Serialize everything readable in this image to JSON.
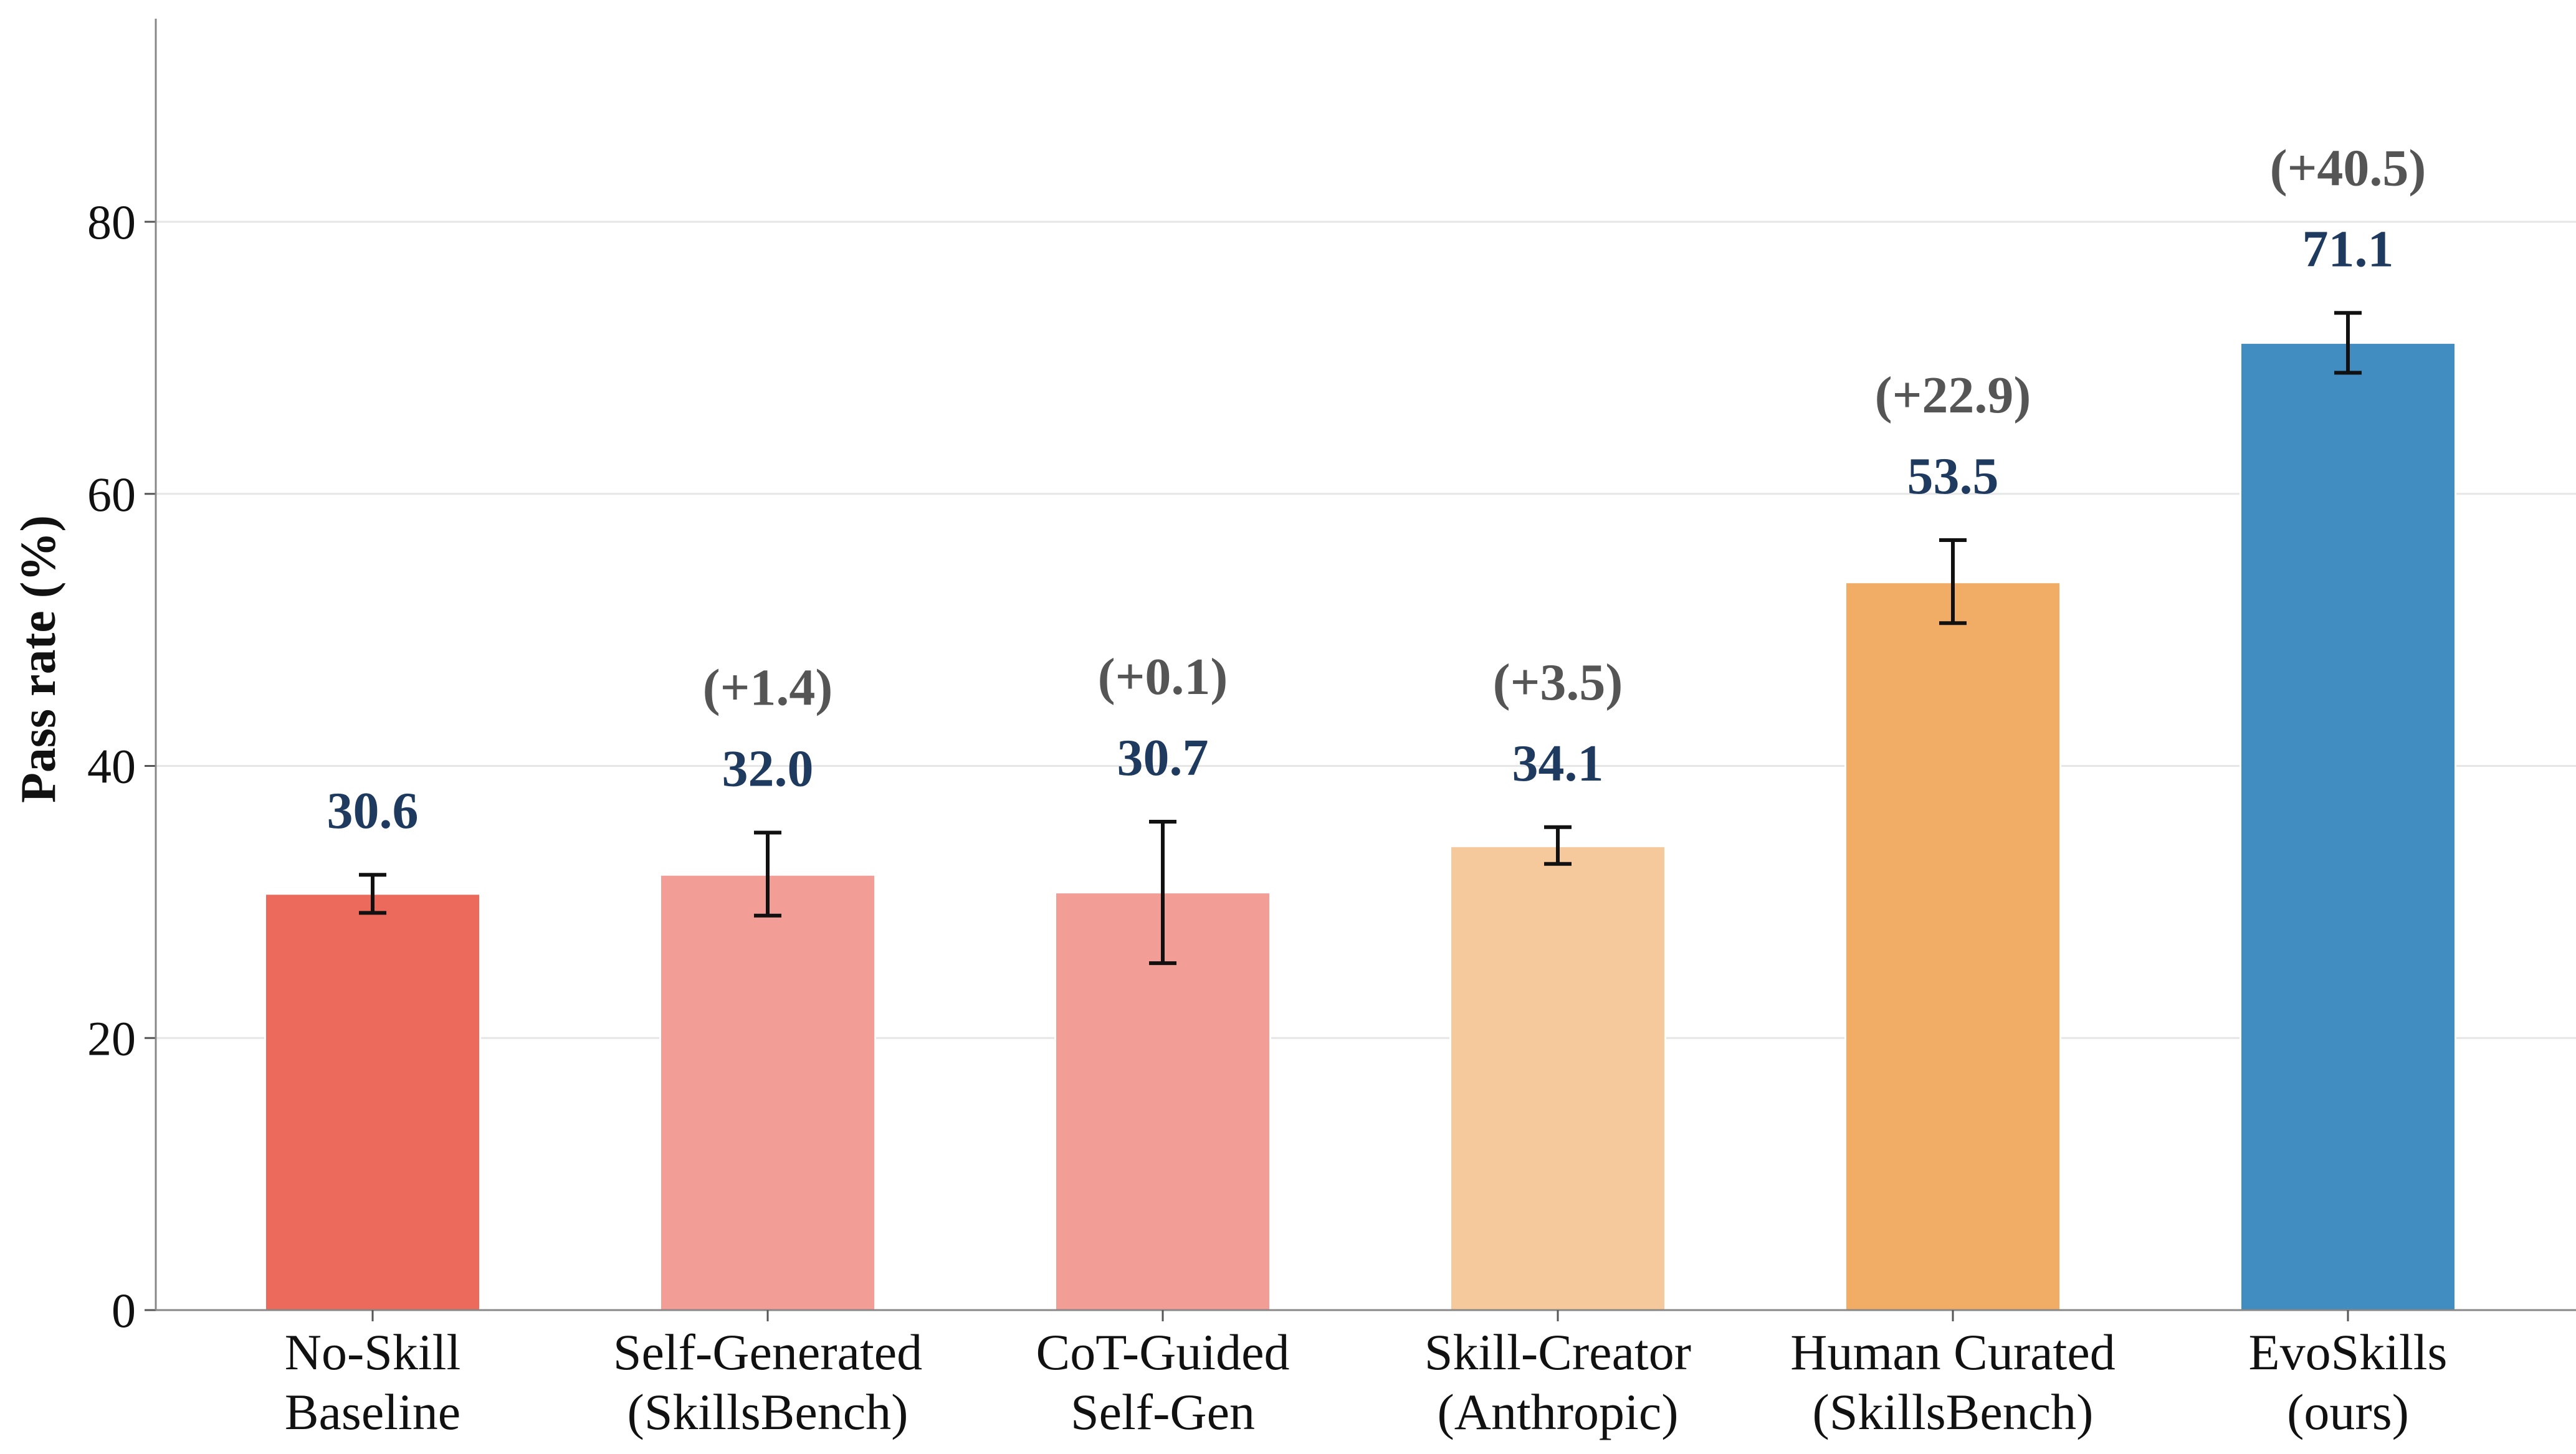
{
  "chart_data": {
    "type": "bar",
    "title": "",
    "xlabel": "",
    "ylabel": "Pass rate (%)",
    "ylim": [
      0,
      95
    ],
    "yticks": [
      0,
      20,
      40,
      60,
      80
    ],
    "grid": "horizontal",
    "categories": [
      [
        "No-Skill",
        "Baseline"
      ],
      [
        "Self-Generated",
        "(SkillsBench)"
      ],
      [
        "CoT-Guided",
        "Self-Gen"
      ],
      [
        "Skill-Creator",
        "(Anthropic)"
      ],
      [
        "Human Curated",
        "(SkillsBench)"
      ],
      [
        "EvoSkills",
        "(ours)"
      ]
    ],
    "values": [
      30.6,
      32.0,
      30.7,
      34.1,
      53.5,
      71.1
    ],
    "value_labels": [
      "30.6",
      "32.0",
      "30.7",
      "34.1",
      "53.5",
      "71.1"
    ],
    "error_low": [
      29.2,
      29.0,
      25.5,
      32.8,
      50.5,
      68.9
    ],
    "error_high": [
      32.0,
      35.1,
      35.9,
      35.5,
      56.6,
      73.3
    ],
    "delta_labels": [
      "",
      "(+1.4)",
      "(+0.1)",
      "(+3.5)",
      "(+22.9)",
      "(+40.5)"
    ],
    "colors": [
      "#ec6a5b",
      "#f29d96",
      "#f29d96",
      "#f6c99c",
      "#f1ad66",
      "#418cc0"
    ]
  }
}
